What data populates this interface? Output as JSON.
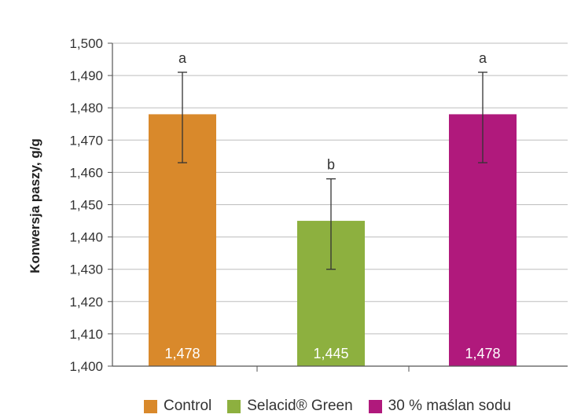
{
  "chart_data": {
    "type": "bar",
    "categories": [
      "Control",
      "Selacid® Green",
      "30 % maślan sodu"
    ],
    "values": [
      1.478,
      1.445,
      1.478
    ],
    "value_labels": [
      "1,478",
      "1,445",
      "1,478"
    ],
    "error_high": [
      1.491,
      1.458,
      1.491
    ],
    "error_low": [
      1.463,
      1.43,
      1.463
    ],
    "significance": [
      "a",
      "b",
      "a"
    ],
    "colors": [
      "#D9892B",
      "#8DB03F",
      "#B0197C"
    ],
    "ylabel": "Konwersja paszy, g/g",
    "ylim": [
      1.4,
      1.5
    ],
    "yticks": [
      1.4,
      1.41,
      1.42,
      1.43,
      1.44,
      1.45,
      1.46,
      1.47,
      1.48,
      1.49,
      1.5
    ],
    "ytick_labels": [
      "1,400",
      "1,410",
      "1,420",
      "1,430",
      "1,440",
      "1,450",
      "1,460",
      "1,470",
      "1,480",
      "1,490",
      "1,500"
    ],
    "grid": true,
    "legend_position": "bottom",
    "legend": [
      "Control",
      "Selacid® Green",
      "30 % maślan sodu"
    ]
  }
}
